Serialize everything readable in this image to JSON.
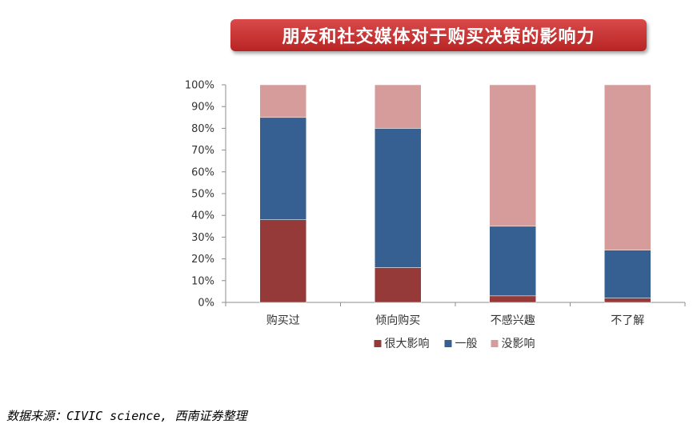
{
  "title": "朋友和社交媒体对于购买决策的影响力",
  "source": "数据来源：CIVIC science, 西南证券整理",
  "colors": {
    "banner": "#c0302f",
    "series": [
      "#953a38",
      "#366092",
      "#d59c9b"
    ]
  },
  "chart_data": {
    "type": "bar",
    "stacked": true,
    "categories": [
      "购买过",
      "倾向购买",
      "不感兴趣",
      "不了解"
    ],
    "series": [
      {
        "name": "很大影响",
        "values": [
          38,
          16,
          3,
          2
        ]
      },
      {
        "name": "一般",
        "values": [
          47,
          64,
          32,
          22
        ]
      },
      {
        "name": "没影响",
        "values": [
          15,
          20,
          65,
          76
        ]
      }
    ],
    "ylim": [
      0,
      100
    ],
    "yticks": [
      "0%",
      "10%",
      "20%",
      "30%",
      "40%",
      "50%",
      "60%",
      "70%",
      "80%",
      "90%",
      "100%"
    ],
    "legend_position": "bottom",
    "grid": false
  }
}
